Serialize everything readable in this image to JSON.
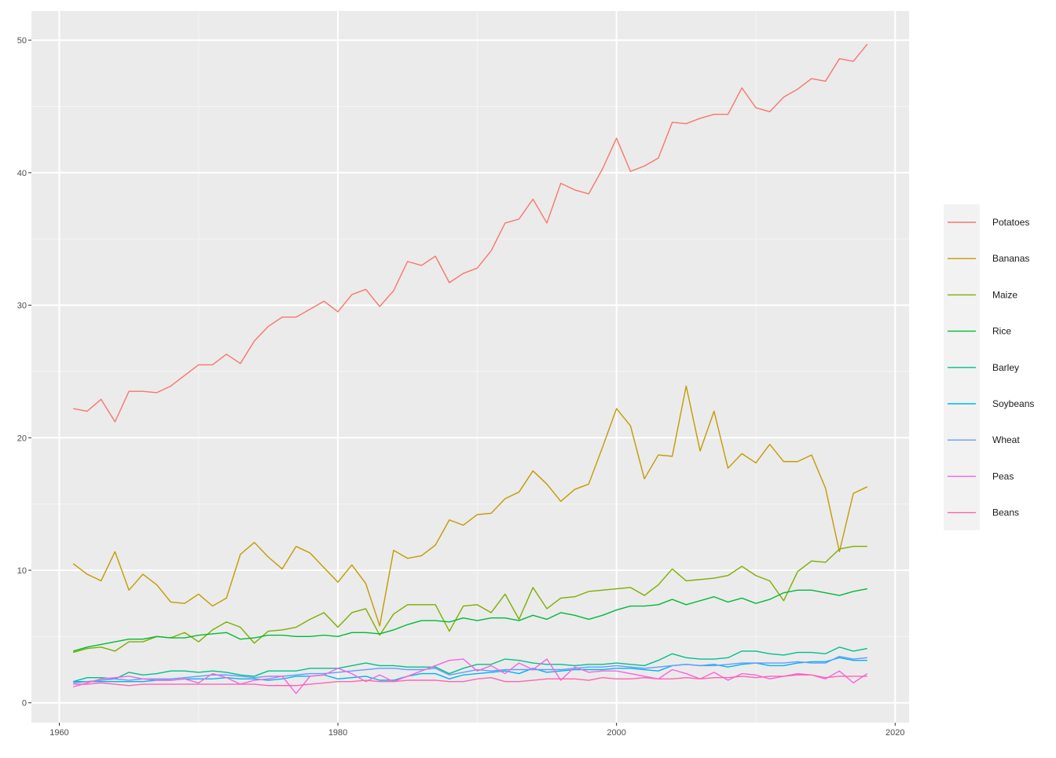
{
  "chart_data": {
    "type": "line",
    "title": "",
    "xlabel": "",
    "ylabel": "",
    "xlim": [
      1958,
      2021
    ],
    "ylim": [
      -1.5,
      52.2
    ],
    "x_ticks": [
      1960,
      1980,
      2000,
      2020
    ],
    "y_ticks": [
      0,
      10,
      20,
      30,
      40,
      50
    ],
    "x_tick_labels": [
      "1960",
      "1980",
      "2000",
      "2020"
    ],
    "y_tick_labels": [
      "0",
      "10",
      "20",
      "30",
      "40",
      "50"
    ],
    "grid": true,
    "legend": {
      "position": "right"
    },
    "x": [
      1961,
      1962,
      1963,
      1964,
      1965,
      1966,
      1967,
      1968,
      1969,
      1970,
      1971,
      1972,
      1973,
      1974,
      1975,
      1976,
      1977,
      1978,
      1979,
      1980,
      1981,
      1982,
      1983,
      1984,
      1985,
      1986,
      1987,
      1988,
      1989,
      1990,
      1991,
      1992,
      1993,
      1994,
      1995,
      1996,
      1997,
      1998,
      1999,
      2000,
      2001,
      2002,
      2003,
      2004,
      2005,
      2006,
      2007,
      2008,
      2009,
      2010,
      2011,
      2012,
      2013,
      2014,
      2015,
      2016,
      2017,
      2018
    ],
    "series": [
      {
        "name": "Potatoes",
        "color": "#F8766D",
        "values": [
          22.2,
          22.0,
          22.9,
          21.2,
          23.5,
          23.5,
          23.4,
          23.9,
          24.7,
          25.5,
          25.5,
          26.3,
          25.6,
          27.3,
          28.4,
          29.1,
          29.1,
          29.7,
          30.3,
          29.5,
          30.8,
          31.2,
          29.9,
          31.1,
          33.3,
          33.0,
          33.7,
          31.7,
          32.4,
          32.8,
          34.1,
          36.2,
          36.5,
          38.0,
          36.2,
          39.2,
          38.7,
          38.4,
          40.3,
          42.6,
          40.1,
          40.5,
          41.1,
          43.8,
          43.7,
          44.1,
          44.4,
          44.4,
          46.4,
          44.9,
          44.6,
          45.7,
          46.3,
          47.1,
          46.9,
          48.6,
          48.4,
          49.7
        ]
      },
      {
        "name": "Bananas",
        "color": "#C49A00",
        "values": [
          10.5,
          9.7,
          9.2,
          11.4,
          8.5,
          9.7,
          8.9,
          7.6,
          7.5,
          8.2,
          7.3,
          7.9,
          11.2,
          12.1,
          11.0,
          10.1,
          11.8,
          11.3,
          10.2,
          9.1,
          10.4,
          9.0,
          5.8,
          11.5,
          10.9,
          11.1,
          11.9,
          13.8,
          13.4,
          14.2,
          14.3,
          15.4,
          15.9,
          17.5,
          16.5,
          15.2,
          16.1,
          16.5,
          19.3,
          22.2,
          20.9,
          16.9,
          18.7,
          18.6,
          23.9,
          19.0,
          22.0,
          17.7,
          18.8,
          18.1,
          19.5,
          18.2,
          18.2,
          18.7,
          16.2,
          11.4,
          15.8,
          16.3
        ]
      },
      {
        "name": "Maize",
        "color": "#7CAE00",
        "values": [
          3.8,
          4.1,
          4.2,
          3.9,
          4.6,
          4.6,
          5.0,
          4.9,
          5.3,
          4.6,
          5.5,
          6.1,
          5.7,
          4.5,
          5.4,
          5.5,
          5.7,
          6.3,
          6.8,
          5.7,
          6.8,
          7.1,
          5.1,
          6.7,
          7.4,
          7.4,
          7.4,
          5.4,
          7.3,
          7.4,
          6.8,
          8.2,
          6.3,
          8.7,
          7.1,
          7.9,
          8.0,
          8.4,
          8.5,
          8.6,
          8.7,
          8.1,
          8.9,
          10.1,
          9.2,
          9.3,
          9.4,
          9.6,
          10.3,
          9.6,
          9.2,
          7.7,
          9.9,
          10.7,
          10.6,
          11.6,
          11.8,
          11.8
        ]
      },
      {
        "name": "Rice",
        "color": "#00BA38",
        "values": [
          3.9,
          4.2,
          4.4,
          4.6,
          4.8,
          4.8,
          5.0,
          4.9,
          4.9,
          5.1,
          5.2,
          5.3,
          4.8,
          4.9,
          5.1,
          5.1,
          5.0,
          5.0,
          5.1,
          5.0,
          5.3,
          5.3,
          5.2,
          5.5,
          5.9,
          6.2,
          6.2,
          6.1,
          6.4,
          6.2,
          6.4,
          6.4,
          6.2,
          6.6,
          6.3,
          6.8,
          6.6,
          6.3,
          6.6,
          7.0,
          7.3,
          7.3,
          7.4,
          7.8,
          7.4,
          7.7,
          8.0,
          7.6,
          7.9,
          7.5,
          7.8,
          8.3,
          8.5,
          8.5,
          8.3,
          8.1,
          8.4,
          8.6
        ]
      },
      {
        "name": "Barley",
        "color": "#00C08B",
        "values": [
          1.6,
          1.9,
          1.9,
          1.8,
          2.3,
          2.1,
          2.2,
          2.4,
          2.4,
          2.3,
          2.4,
          2.3,
          2.1,
          2.0,
          2.4,
          2.4,
          2.4,
          2.6,
          2.6,
          2.6,
          2.8,
          3.0,
          2.8,
          2.8,
          2.7,
          2.7,
          2.7,
          2.2,
          2.6,
          2.9,
          2.9,
          3.3,
          3.2,
          3.0,
          2.9,
          2.9,
          2.8,
          2.9,
          2.9,
          3.0,
          2.9,
          2.8,
          3.2,
          3.7,
          3.4,
          3.3,
          3.3,
          3.4,
          3.9,
          3.9,
          3.7,
          3.6,
          3.8,
          3.8,
          3.7,
          4.2,
          3.9,
          4.1
        ]
      },
      {
        "name": "Soybeans",
        "color": "#00B4F0",
        "values": [
          1.6,
          1.6,
          1.6,
          1.6,
          1.6,
          1.6,
          1.7,
          1.7,
          1.8,
          1.8,
          1.8,
          1.9,
          1.8,
          1.8,
          1.7,
          1.8,
          2.0,
          2.0,
          2.1,
          1.8,
          1.9,
          2.0,
          1.7,
          1.7,
          2.0,
          2.2,
          2.2,
          1.8,
          2.1,
          2.2,
          2.3,
          2.4,
          2.2,
          2.6,
          2.3,
          2.4,
          2.5,
          2.5,
          2.5,
          2.6,
          2.6,
          2.5,
          2.4,
          2.8,
          2.9,
          2.8,
          2.9,
          2.7,
          2.9,
          3.0,
          2.8,
          2.8,
          3.0,
          3.1,
          3.1,
          3.4,
          3.2,
          3.2
        ]
      },
      {
        "name": "Wheat",
        "color": "#619CFF",
        "values": [
          1.5,
          1.6,
          1.7,
          1.8,
          1.7,
          1.8,
          1.8,
          1.8,
          1.9,
          2.0,
          2.1,
          2.1,
          2.0,
          1.9,
          2.0,
          2.0,
          2.1,
          2.2,
          2.2,
          2.3,
          2.4,
          2.5,
          2.6,
          2.6,
          2.5,
          2.5,
          2.6,
          2.1,
          2.3,
          2.5,
          2.4,
          2.5,
          2.5,
          2.5,
          2.5,
          2.5,
          2.6,
          2.7,
          2.7,
          2.8,
          2.7,
          2.6,
          2.7,
          2.8,
          2.9,
          2.8,
          2.8,
          2.9,
          3.0,
          3.0,
          3.0,
          3.0,
          3.1,
          3.0,
          3.0,
          3.5,
          3.3,
          3.4
        ]
      },
      {
        "name": "Peas",
        "color": "#F564E3",
        "values": [
          1.2,
          1.5,
          1.8,
          1.9,
          2.0,
          1.8,
          1.7,
          1.7,
          1.8,
          1.5,
          2.2,
          1.9,
          1.4,
          1.7,
          1.8,
          2.0,
          0.7,
          2.0,
          2.1,
          2.6,
          2.2,
          1.6,
          2.1,
          1.6,
          2.0,
          2.4,
          2.8,
          3.2,
          3.3,
          2.4,
          2.8,
          2.2,
          3.0,
          2.5,
          3.3,
          1.7,
          2.7,
          2.3,
          2.4,
          2.4,
          2.2,
          2.0,
          1.8,
          2.5,
          2.2,
          1.8,
          2.3,
          1.7,
          2.2,
          2.1,
          1.8,
          2.0,
          2.2,
          2.1,
          1.8,
          2.4,
          1.5,
          2.2
        ]
      },
      {
        "name": "Beans",
        "color": "#FF64B0",
        "values": [
          1.4,
          1.4,
          1.5,
          1.4,
          1.3,
          1.4,
          1.4,
          1.4,
          1.4,
          1.4,
          1.4,
          1.4,
          1.4,
          1.4,
          1.3,
          1.3,
          1.3,
          1.4,
          1.5,
          1.6,
          1.6,
          1.7,
          1.6,
          1.6,
          1.7,
          1.7,
          1.7,
          1.6,
          1.6,
          1.8,
          1.9,
          1.6,
          1.6,
          1.7,
          1.8,
          1.8,
          1.8,
          1.7,
          1.9,
          1.8,
          1.8,
          1.9,
          1.8,
          1.8,
          1.9,
          1.8,
          1.9,
          1.9,
          2.0,
          1.9,
          2.0,
          2.0,
          2.1,
          2.1,
          1.9,
          2.0,
          2.0,
          2.0
        ]
      }
    ]
  }
}
